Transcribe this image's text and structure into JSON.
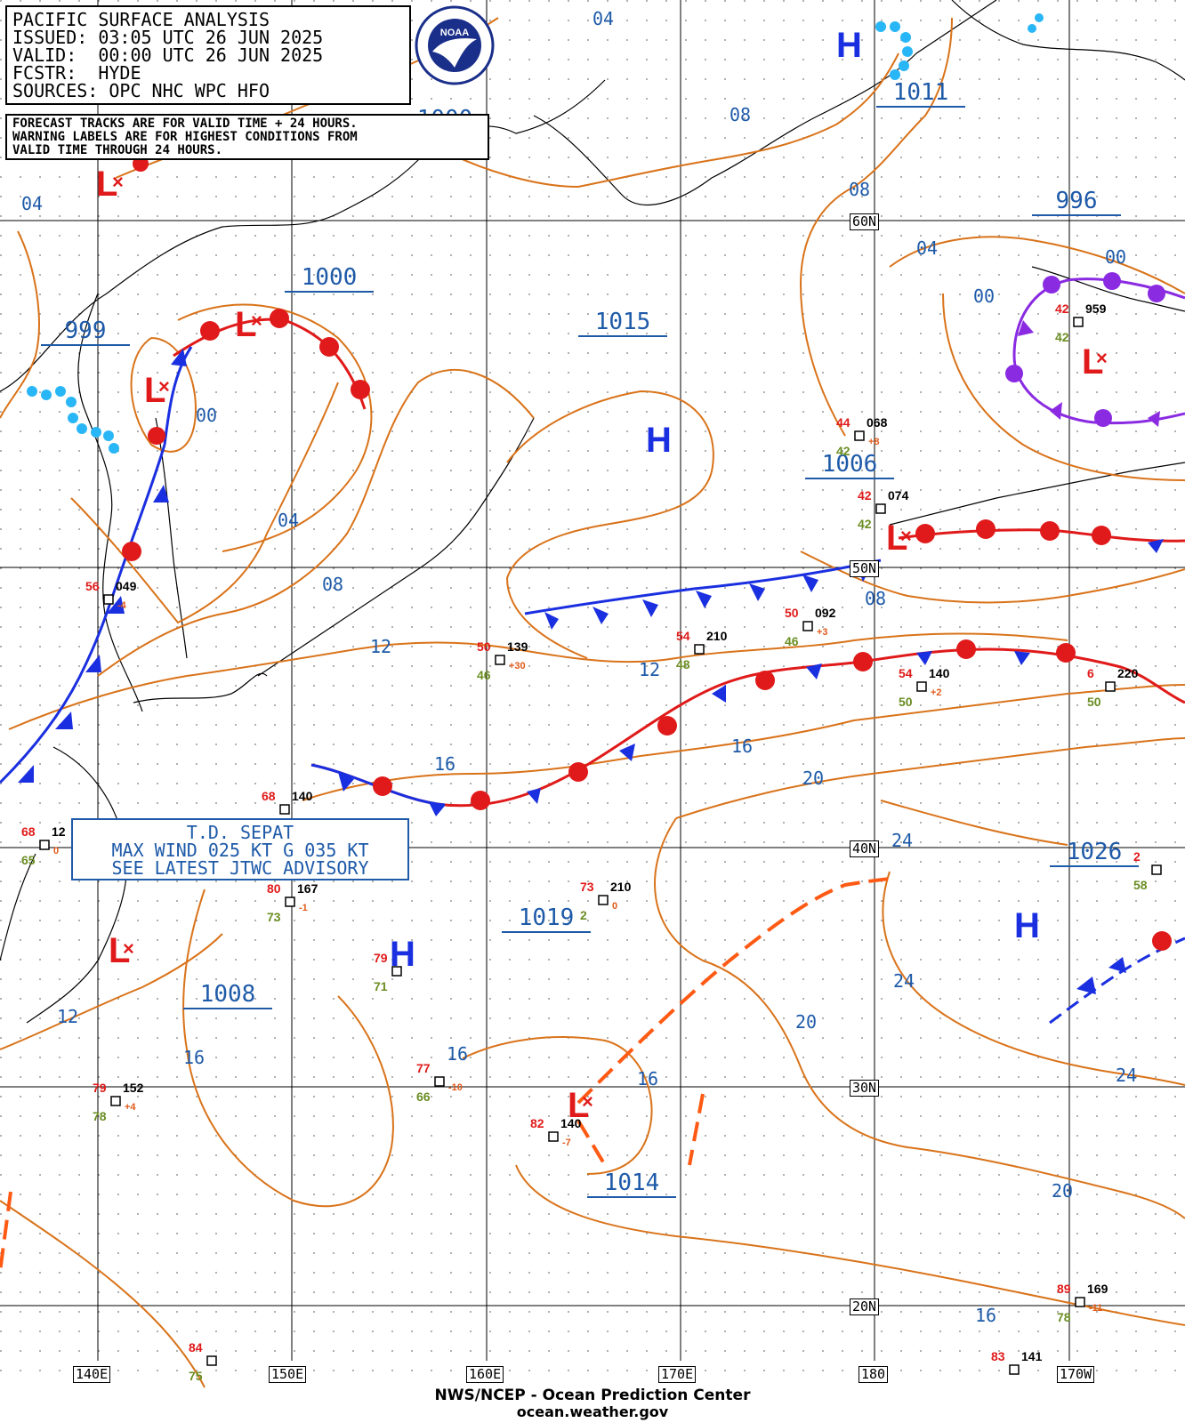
{
  "header": {
    "lines": [
      "PACIFIC SURFACE ANALYSIS",
      "ISSUED: 03:05 UTC 26 JUN 2025",
      "VALID:  00:00 UTC 26 JUN 2025",
      "FCSTR:  HYDE",
      "SOURCES: OPC NHC WPC HFO"
    ]
  },
  "note": {
    "lines": [
      "FORECAST TRACKS ARE FOR VALID TIME + 24 HOURS.",
      "WARNING LABELS ARE FOR HIGHEST CONDITIONS FROM",
      "VALID TIME THROUGH 24 HOURS."
    ]
  },
  "advisory": {
    "lines": [
      "T.D. SEPAT",
      "MAX WIND 025 KT G 035 KT",
      "SEE LATEST JTWC ADVISORY"
    ]
  },
  "footer": {
    "line1": "NWS/NCEP - Ocean Prediction Center",
    "line2": "ocean.weather.gov"
  },
  "logo_text": "NOAA",
  "grid": {
    "lon_labels": [
      "140E",
      "150E",
      "160E",
      "170E",
      "180",
      "170W"
    ],
    "lat_labels": [
      "60N",
      "50N",
      "40N",
      "30N",
      "20N"
    ]
  },
  "pressure_centers": [
    {
      "type": "H",
      "value": "1011"
    },
    {
      "type": "L",
      "value": "996"
    },
    {
      "type": "L",
      "value": "999"
    },
    {
      "type": "L",
      "value": "1000"
    },
    {
      "type": "L",
      "value": "1000"
    },
    {
      "type": "H",
      "value": "1015"
    },
    {
      "type": "L",
      "value": "1006"
    },
    {
      "type": "L",
      "value": "1008"
    },
    {
      "type": "H",
      "value": "1019"
    },
    {
      "type": "L",
      "value": "1014"
    },
    {
      "type": "H",
      "value": "1026"
    }
  ],
  "isobar_labels": [
    "04",
    "04",
    "08",
    "08",
    "04",
    "00",
    "00",
    "00",
    "04",
    "08",
    "12",
    "08",
    "12",
    "16",
    "16",
    "20",
    "24",
    "24",
    "20",
    "12",
    "16",
    "16",
    "16",
    "24",
    "20",
    "16"
  ],
  "ship_obs": [
    {
      "t": "56",
      "id": "049",
      "d": "",
      "p": "-4"
    },
    {
      "t": "50",
      "id": "139",
      "d": "46",
      "p": "+30"
    },
    {
      "t": "54",
      "id": "210",
      "d": "48",
      "p": ""
    },
    {
      "t": "50",
      "id": "092",
      "d": "46",
      "p": "+3"
    },
    {
      "t": "44",
      "id": "068",
      "d": "42",
      "p": "+8"
    },
    {
      "t": "42",
      "id": "074",
      "d": "42",
      "p": ""
    },
    {
      "t": "42",
      "id": "959",
      "d": "42",
      "p": ""
    },
    {
      "t": "54",
      "id": "140",
      "d": "50",
      "p": "+2"
    },
    {
      "t": "6",
      "id": "220",
      "d": "50",
      "p": ""
    },
    {
      "t": "68",
      "id": "12",
      "d": "65",
      "p": "0"
    },
    {
      "t": "68",
      "id": "140",
      "d": "",
      "p": ""
    },
    {
      "t": "80",
      "id": "167",
      "d": "73",
      "p": "-1"
    },
    {
      "t": "79",
      "id": "",
      "d": "71",
      "p": ""
    },
    {
      "t": "73",
      "id": "210",
      "d": "2",
      "p": "0"
    },
    {
      "t": "2",
      "id": "",
      "d": "58",
      "p": ""
    },
    {
      "t": "77",
      "id": "",
      "d": "66",
      "p": "-10"
    },
    {
      "t": "79",
      "id": "152",
      "d": "78",
      "p": "+4"
    },
    {
      "t": "82",
      "id": "140",
      "d": "",
      "p": "-7"
    },
    {
      "t": "89",
      "id": "169",
      "d": "78",
      "p": "-11"
    },
    {
      "t": "84",
      "id": "",
      "d": "75",
      "p": ""
    },
    {
      "t": "83",
      "id": "141",
      "d": "",
      "p": ""
    }
  ],
  "colors": {
    "isobar": "#d9731a",
    "label_blue": "#1e5aa8",
    "cold_front": "#1a2fe0",
    "warm_front": "#e01a1a",
    "occluded": "#8a2be2",
    "grid": "#000000",
    "trough": "#ff5a14",
    "ridge_dots": "#29b6f6"
  }
}
